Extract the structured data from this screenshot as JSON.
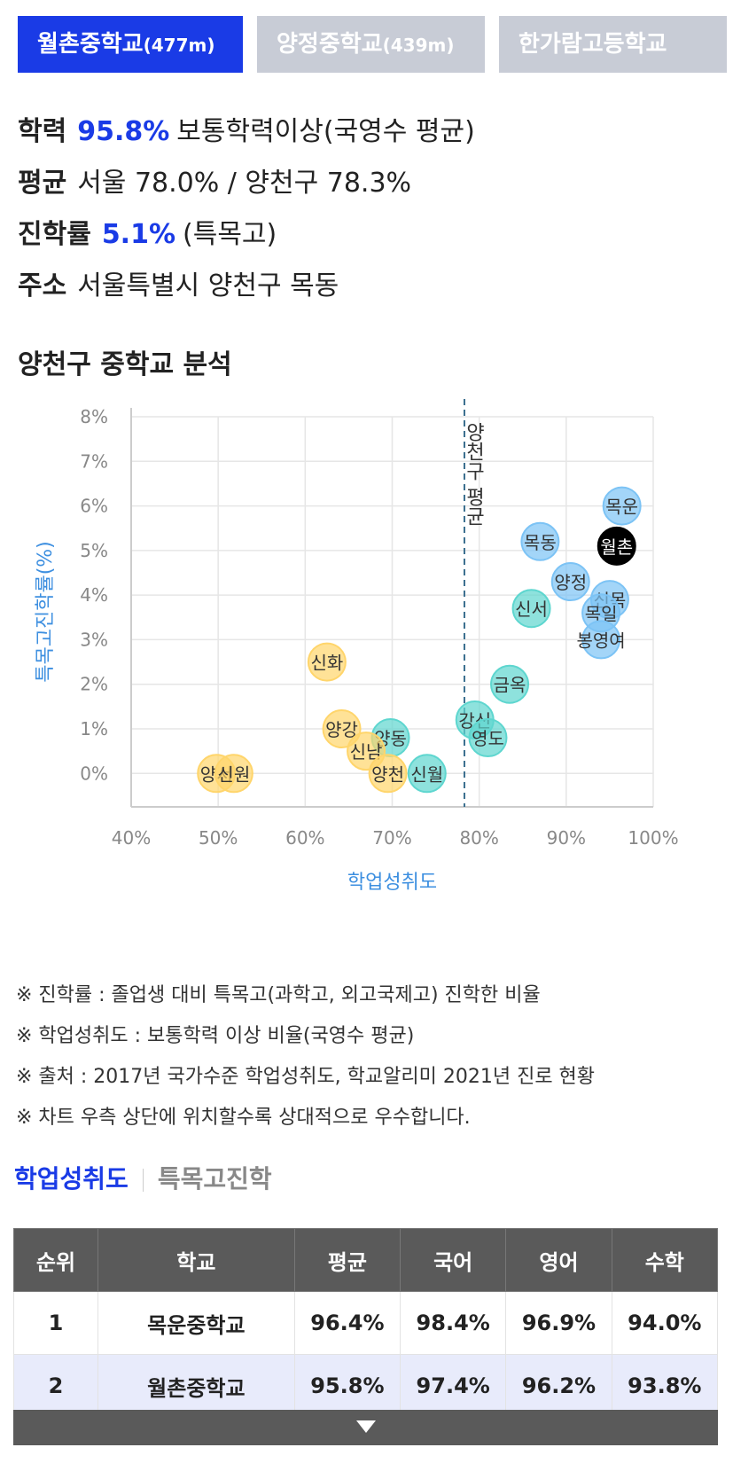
{
  "tabs": [
    {
      "name": "월촌중학교",
      "dist": "(477m)",
      "active": true
    },
    {
      "name": "양정중학교",
      "dist": "(439m)",
      "active": false
    },
    {
      "name": "한가람고등학교",
      "dist": "",
      "active": false
    }
  ],
  "info": {
    "achievement_label": "학력",
    "achievement_value": "95.8%",
    "achievement_desc": "보통학력이상(국영수 평균)",
    "average_label": "평균",
    "average_value": "서울 78.0% / 양천구 78.3%",
    "advance_label": "진학률",
    "advance_value": "5.1%",
    "advance_desc": "(특목고)",
    "address_label": "주소",
    "address_value": "서울특별시 양천구 목동"
  },
  "section_title": "양천구 중학교 분석",
  "chart_data": {
    "type": "scatter",
    "xlabel": "학업성취도",
    "ylabel": "특목고진학률(%)",
    "xlim": [
      40,
      100
    ],
    "ylim": [
      -0.75,
      8.0
    ],
    "xticks": [
      "40%",
      "50%",
      "60%",
      "70%",
      "80%",
      "90%",
      "100%"
    ],
    "yticks": [
      "0%",
      "1%",
      "2%",
      "3%",
      "4%",
      "5%",
      "6%",
      "7%",
      "8%"
    ],
    "reference_line": {
      "x": 78.3,
      "label": "양천구 평균"
    },
    "colors": {
      "low": "#ffd56b",
      "mid": "#5ed6cf",
      "high": "#7cc3f5",
      "highlight": "#000000",
      "axis_label": "#3d8fe0",
      "refline": "#3b6f8f"
    },
    "points": [
      {
        "name": "목운",
        "x": 96.4,
        "y": 6.0,
        "group": "high"
      },
      {
        "name": "월촌",
        "x": 95.8,
        "y": 5.1,
        "group": "highlight"
      },
      {
        "name": "목동",
        "x": 87.0,
        "y": 5.2,
        "group": "high"
      },
      {
        "name": "양정",
        "x": 90.5,
        "y": 4.3,
        "group": "high"
      },
      {
        "name": "신목",
        "x": 95.0,
        "y": 3.9,
        "group": "high"
      },
      {
        "name": "목일",
        "x": 94.0,
        "y": 3.6,
        "group": "high"
      },
      {
        "name": "봉영여",
        "x": 94.0,
        "y": 3.0,
        "group": "high"
      },
      {
        "name": "신서",
        "x": 86.0,
        "y": 3.7,
        "group": "mid"
      },
      {
        "name": "금옥",
        "x": 83.5,
        "y": 2.0,
        "group": "mid"
      },
      {
        "name": "강신",
        "x": 79.5,
        "y": 1.2,
        "group": "mid"
      },
      {
        "name": "영도",
        "x": 81.0,
        "y": 0.8,
        "group": "mid"
      },
      {
        "name": "양동",
        "x": 69.8,
        "y": 0.8,
        "group": "mid"
      },
      {
        "name": "신월",
        "x": 74.0,
        "y": 0.0,
        "group": "mid"
      },
      {
        "name": "신화",
        "x": 62.5,
        "y": 2.5,
        "group": "low"
      },
      {
        "name": "양강",
        "x": 64.2,
        "y": 1.0,
        "group": "low"
      },
      {
        "name": "신남",
        "x": 67.0,
        "y": 0.5,
        "group": "low"
      },
      {
        "name": "양천",
        "x": 69.5,
        "y": 0.0,
        "group": "low"
      },
      {
        "name": "양서",
        "x": 49.8,
        "y": 0.0,
        "group": "low"
      },
      {
        "name": "신원",
        "x": 51.8,
        "y": 0.0,
        "group": "low"
      }
    ]
  },
  "notes": [
    "※ 진학률 : 졸업생 대비 특목고(과학고, 외고국제고) 진학한 비율",
    "※ 학업성취도 : 보통학력 이상 비율(국영수 평균)",
    "※ 출처 : 2017년 국가수준 학업성취도, 학교알리미 2021년 진로 현황",
    "※ 차트 우측 상단에 위치할수록 상대적으로 우수합니다."
  ],
  "subtabs": {
    "achievement": "학업성취도",
    "special": "특목고진학"
  },
  "table": {
    "headers": [
      "순위",
      "학교",
      "평균",
      "국어",
      "영어",
      "수학"
    ],
    "rows": [
      [
        "1",
        "목운중학교",
        "96.4%",
        "98.4%",
        "96.9%",
        "94.0%"
      ],
      [
        "2",
        "월촌중학교",
        "95.8%",
        "97.4%",
        "96.2%",
        "93.8%"
      ]
    ],
    "highlight_row": 1
  },
  "more_icon": "caret-down-icon"
}
